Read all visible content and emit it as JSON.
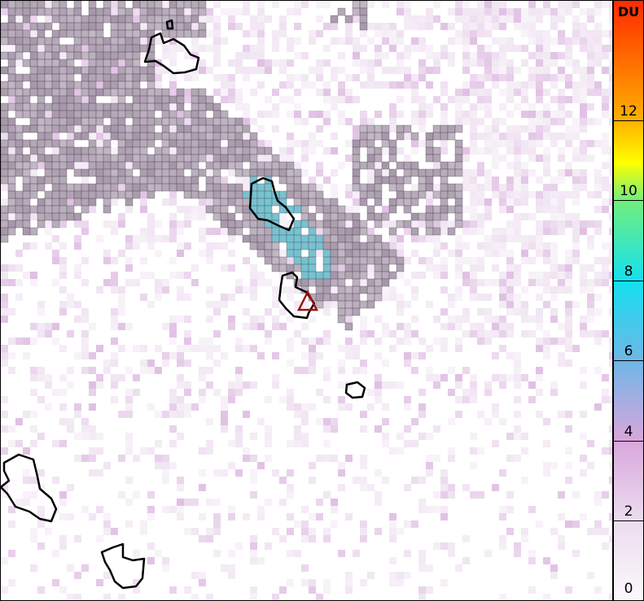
{
  "colorbar": {
    "unit": "DU",
    "ticks": [
      "0",
      "2",
      "4",
      "6",
      "8",
      "10",
      "12"
    ],
    "range": [
      0,
      15
    ],
    "colors": [
      "#fbf8fc",
      "#ecdcee",
      "#d9a6dc",
      "#6fb6e6",
      "#14e0f0",
      "#72ef7c",
      "#ffff00",
      "#ffb000",
      "#ff2a00"
    ]
  },
  "map": {
    "plume_color": "#9a8a9e",
    "coastline_color": "#000000",
    "volcano_marker_color": "#a01010",
    "volcano_marker": "triangle-icon"
  }
}
